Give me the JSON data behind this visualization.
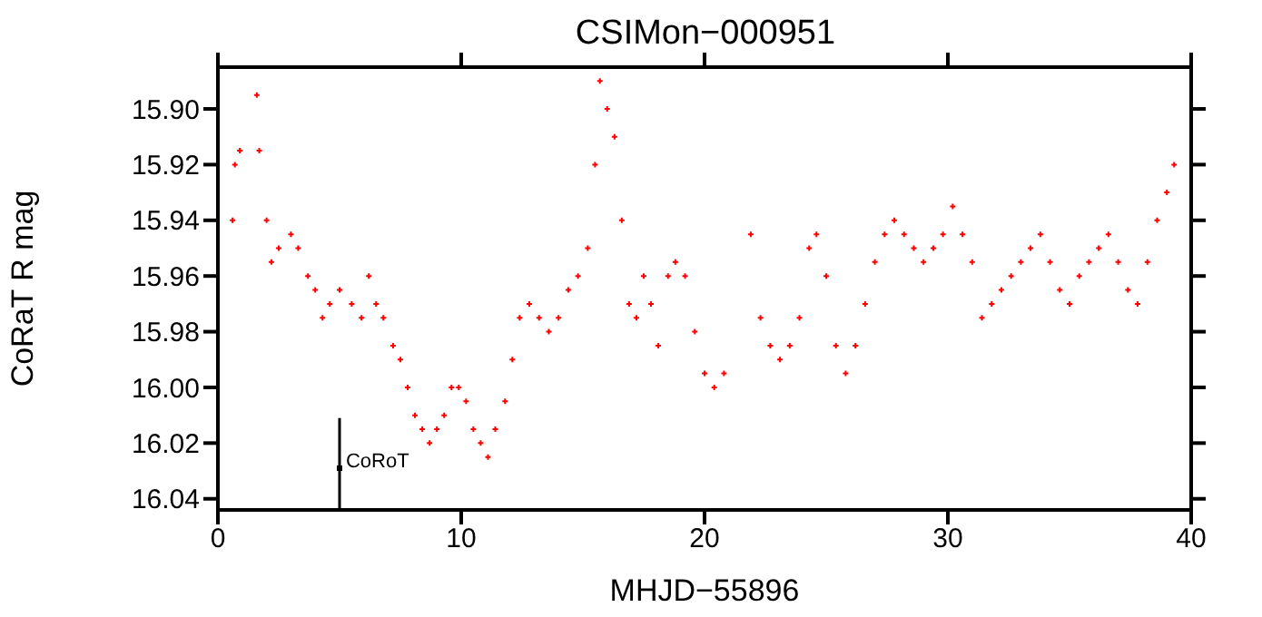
{
  "chart_data": {
    "type": "scatter",
    "title": "CSIMon−000951",
    "xlabel": "MHJD−55896",
    "ylabel": "CoRaT R mag",
    "xlim": [
      0,
      40
    ],
    "xticks": [
      0,
      10,
      20,
      30,
      40
    ],
    "ylim": [
      16.044,
      15.885
    ],
    "yticks": [
      {
        "value": 15.9,
        "label": "15.90"
      },
      {
        "value": 15.92,
        "label": "15.92"
      },
      {
        "value": 15.94,
        "label": "15.94"
      },
      {
        "value": 15.96,
        "label": "15.96"
      },
      {
        "value": 15.98,
        "label": "15.98"
      },
      {
        "value": 16.0,
        "label": "16.00"
      },
      {
        "value": 16.02,
        "label": "16.02"
      },
      {
        "value": 16.04,
        "label": "16.04"
      }
    ],
    "marker": "cross",
    "series": [
      {
        "color": "#ff0000",
        "x": [
          0.6,
          0.7,
          0.9,
          1.6,
          1.7,
          2.0,
          2.2,
          2.5,
          3.0,
          3.3,
          3.7,
          4.0,
          4.3,
          4.6,
          5.0,
          5.5,
          5.9,
          6.2,
          6.5,
          6.8,
          7.2,
          7.5,
          7.8,
          8.1,
          8.4,
          8.7,
          9.0,
          9.3,
          9.6,
          9.9,
          10.2,
          10.5,
          10.8,
          11.1,
          11.4,
          11.8,
          12.1,
          12.4,
          12.8,
          13.2,
          13.6,
          14.0,
          14.4,
          14.8,
          15.2,
          15.5,
          15.7,
          16.0,
          16.3,
          16.6,
          16.9,
          17.2,
          17.5,
          17.8,
          18.1,
          18.5,
          18.8,
          19.2,
          19.6,
          20.0,
          20.4,
          20.8,
          21.9,
          22.3,
          22.7,
          23.1,
          23.5,
          23.9,
          24.3,
          24.6,
          25.0,
          25.4,
          25.8,
          26.2,
          26.6,
          27.0,
          27.4,
          27.8,
          28.2,
          28.6,
          29.0,
          29.4,
          29.8,
          30.2,
          30.6,
          31.0,
          31.4,
          31.8,
          32.2,
          32.6,
          33.0,
          33.4,
          33.8,
          34.2,
          34.6,
          35.0,
          35.4,
          35.8,
          36.2,
          36.6,
          37.0,
          37.4,
          37.8,
          38.2,
          38.6,
          39.0,
          39.3
        ],
        "values": [
          15.94,
          15.92,
          15.915,
          15.895,
          15.915,
          15.94,
          15.955,
          15.95,
          15.945,
          15.95,
          15.96,
          15.965,
          15.975,
          15.97,
          15.965,
          15.97,
          15.975,
          15.96,
          15.97,
          15.975,
          15.985,
          15.99,
          16.0,
          16.01,
          16.015,
          16.02,
          16.015,
          16.01,
          16.0,
          16.0,
          16.005,
          16.015,
          16.02,
          16.025,
          16.015,
          16.005,
          15.99,
          15.975,
          15.97,
          15.975,
          15.98,
          15.975,
          15.965,
          15.96,
          15.95,
          15.92,
          15.89,
          15.9,
          15.91,
          15.94,
          15.97,
          15.975,
          15.96,
          15.97,
          15.985,
          15.96,
          15.955,
          15.96,
          15.98,
          15.995,
          16.0,
          15.995,
          15.945,
          15.975,
          15.985,
          15.99,
          15.985,
          15.975,
          15.95,
          15.945,
          15.96,
          15.985,
          15.995,
          15.985,
          15.97,
          15.955,
          15.945,
          15.94,
          15.945,
          15.95,
          15.955,
          15.95,
          15.945,
          15.935,
          15.945,
          15.955,
          15.975,
          15.97,
          15.965,
          15.96,
          15.955,
          15.95,
          15.945,
          15.955,
          15.965,
          15.97,
          15.96,
          15.955,
          15.95,
          15.945,
          15.955,
          15.965,
          15.97,
          15.955,
          15.94,
          15.93,
          15.92
        ]
      },
      {
        "name": "CoRoT",
        "color": "#000000",
        "marker": "square",
        "x": [
          5
        ],
        "values": [
          16.029
        ],
        "errors": [
          [
            16.011,
            16.044
          ]
        ]
      }
    ]
  }
}
